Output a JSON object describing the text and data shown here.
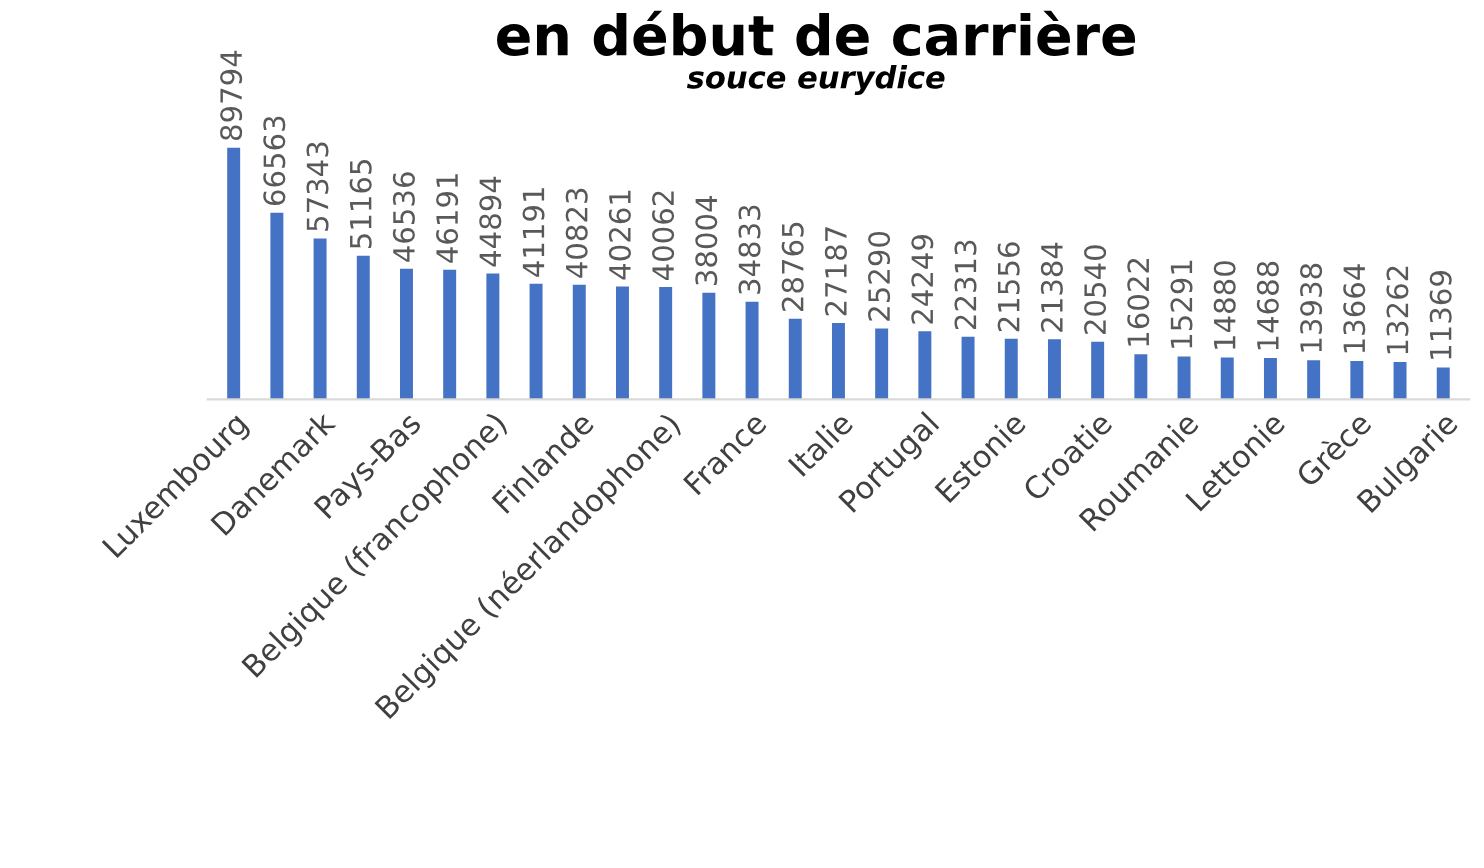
{
  "chart_data": {
    "type": "bar",
    "title": "en début de carrière",
    "subtitle": "souce eurydice",
    "categories": [
      "Luxembourg",
      null,
      "Danemark",
      null,
      "Pays-Bas",
      null,
      "Belgique (francophone)",
      null,
      "Finlande",
      null,
      "Belgique (néerlandophone)",
      null,
      "France",
      null,
      "Italie",
      null,
      "Portugal",
      null,
      "Estonie",
      null,
      "Croatie",
      null,
      "Roumanie",
      null,
      "Lettonie",
      null,
      "Grèce",
      null,
      "Bulgarie"
    ],
    "values": [
      89794,
      66563,
      57343,
      51165,
      46536,
      46191,
      44894,
      41191,
      40823,
      40261,
      40062,
      38004,
      34833,
      28765,
      27187,
      25290,
      24249,
      22313,
      21556,
      21384,
      20540,
      16022,
      15291,
      14880,
      14688,
      13938,
      13664,
      13262,
      11369
    ],
    "color": "#4472c4",
    "data_labels": true,
    "grid": false,
    "legend": false
  }
}
